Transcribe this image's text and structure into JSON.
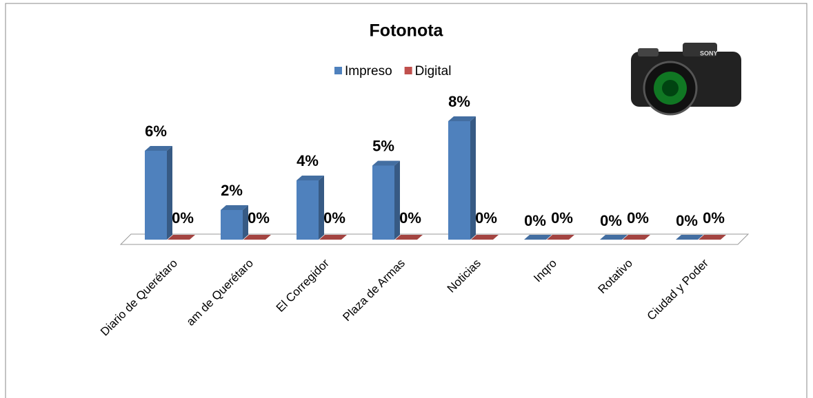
{
  "chart_data": {
    "type": "bar3d",
    "title": "Fotonota",
    "categories": [
      "Diario de Querétaro",
      "am de Querétaro",
      "El Corregidor",
      "Plaza de Armas",
      "Noticias",
      "Inqro",
      "Rotativo",
      "Ciudad y Poder"
    ],
    "series": [
      {
        "name": "Impreso",
        "color": "#4f81bd",
        "values": [
          6,
          2,
          4,
          5,
          8,
          0,
          0,
          0
        ],
        "value_labels": [
          "6%",
          "2%",
          "4%",
          "5%",
          "8%",
          "0%",
          "0%",
          "0%"
        ]
      },
      {
        "name": "Digital",
        "color": "#c0504d",
        "values": [
          0,
          0,
          0,
          0,
          0,
          0,
          0,
          0
        ],
        "value_labels": [
          "0%",
          "0%",
          "0%",
          "0%",
          "0%",
          "0%",
          "0%",
          "0%"
        ]
      }
    ]
  }
}
